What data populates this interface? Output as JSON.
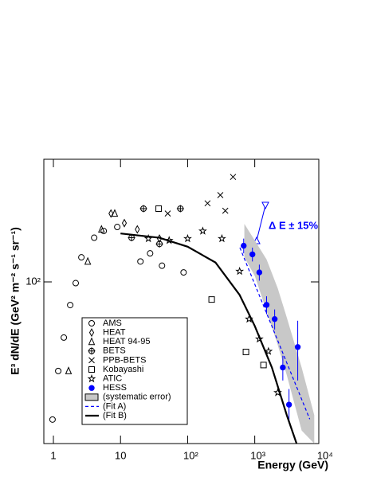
{
  "chart_data": {
    "type": "scatter",
    "ylabel": "E³ dN/dE (GeV² m⁻² s⁻¹ sr⁻¹)",
    "xlabel": "Energy  (GeV)",
    "xlog": true,
    "ylog": true,
    "xlim": [
      0.72,
      9000
    ],
    "ylim": [
      27,
      270
    ],
    "xticks": [
      1,
      10,
      {
        "value": 100,
        "label": "10²"
      },
      {
        "value": 1000,
        "label": "10³"
      },
      {
        "value": 10000,
        "label": "10⁴"
      }
    ],
    "yticks": [
      {
        "value": 100,
        "label": "10²"
      }
    ],
    "annotation": "Δ E ± 15%",
    "series": [
      {
        "name": "AMS",
        "marker": "circle",
        "color": "#000000",
        "x": [
          0.97,
          1.18,
          1.43,
          1.78,
          2.15,
          2.61,
          4.05,
          5.62,
          8.94,
          19.8,
          27.6,
          41.5,
          87
        ],
        "values": [
          32.8,
          48.6,
          63.7,
          82.9,
          99,
          122,
          143,
          151,
          156,
          118,
          126,
          114,
          108
        ]
      },
      {
        "name": "HEAT",
        "marker": "diamond",
        "color": "#000000",
        "x": [
          7.2,
          11.4,
          17.8,
          38
        ],
        "values": [
          174,
          161,
          153,
          142
        ]
      },
      {
        "name": "HEAT 94-95",
        "marker": "triangle",
        "color": "#000000",
        "x": [
          1.68,
          3.25,
          5.2,
          8.2
        ],
        "values": [
          48.6,
          118,
          153,
          174
        ]
      },
      {
        "name": "BETS",
        "marker": "circleplus",
        "color": "#000000",
        "x": [
          14.6,
          22,
          38,
          78
        ],
        "values": [
          143,
          181,
          136,
          181
        ]
      },
      {
        "name": "PPB-BETS",
        "marker": "cross",
        "color": "#000000",
        "x": [
          50.5,
          198,
          307,
          364,
          475
        ],
        "values": [
          174,
          189,
          202,
          178,
          234
        ]
      },
      {
        "name": "Kobayashi",
        "marker": "square",
        "color": "#000000",
        "x": [
          37,
          228,
          739,
          1350
        ],
        "values": [
          181,
          86.7,
          56.7,
          51
        ]
      },
      {
        "name": "ATIC",
        "marker": "star",
        "color": "#000000",
        "x": [
          26,
          53,
          100,
          168,
          324,
          595,
          823,
          1170,
          1600,
          2200
        ],
        "values": [
          142,
          140,
          142,
          151,
          142,
          109,
          74,
          63,
          57,
          40.8
        ]
      },
      {
        "name": "HESS",
        "marker": "dot",
        "color": "#0000ff",
        "x": [
          684,
          923,
          1170,
          1500,
          1980,
          2620,
          3240,
          4370
        ],
        "values": [
          134,
          125,
          108,
          83,
          74,
          50,
          37,
          59
        ],
        "errors": [
          8,
          7,
          7,
          6,
          6,
          5,
          5,
          14
        ]
      },
      {
        "name": "(systematic error)",
        "kind": "band",
        "color": "#c8c8c8",
        "x": [
          700,
          1000,
          1500,
          2200,
          3000,
          5000,
          7700
        ],
        "upper": [
          160,
          140,
          120,
          95,
          75,
          50,
          34
        ],
        "lower": [
          122,
          105,
          79,
          60,
          47,
          30,
          27
        ]
      },
      {
        "name": "(Fit A)",
        "kind": "line",
        "dash": true,
        "color": "#0000ff",
        "x": [
          600,
          6600
        ],
        "values": [
          132,
          32.9
        ]
      },
      {
        "name": "(Fit B)",
        "kind": "line",
        "dash": false,
        "color": "#000000",
        "x": [
          10,
          38,
          100,
          260,
          595,
          1000,
          1800,
          3000,
          4200
        ],
        "values": [
          148,
          143,
          133,
          117,
          90,
          70,
          50,
          34,
          27
        ]
      }
    ]
  }
}
